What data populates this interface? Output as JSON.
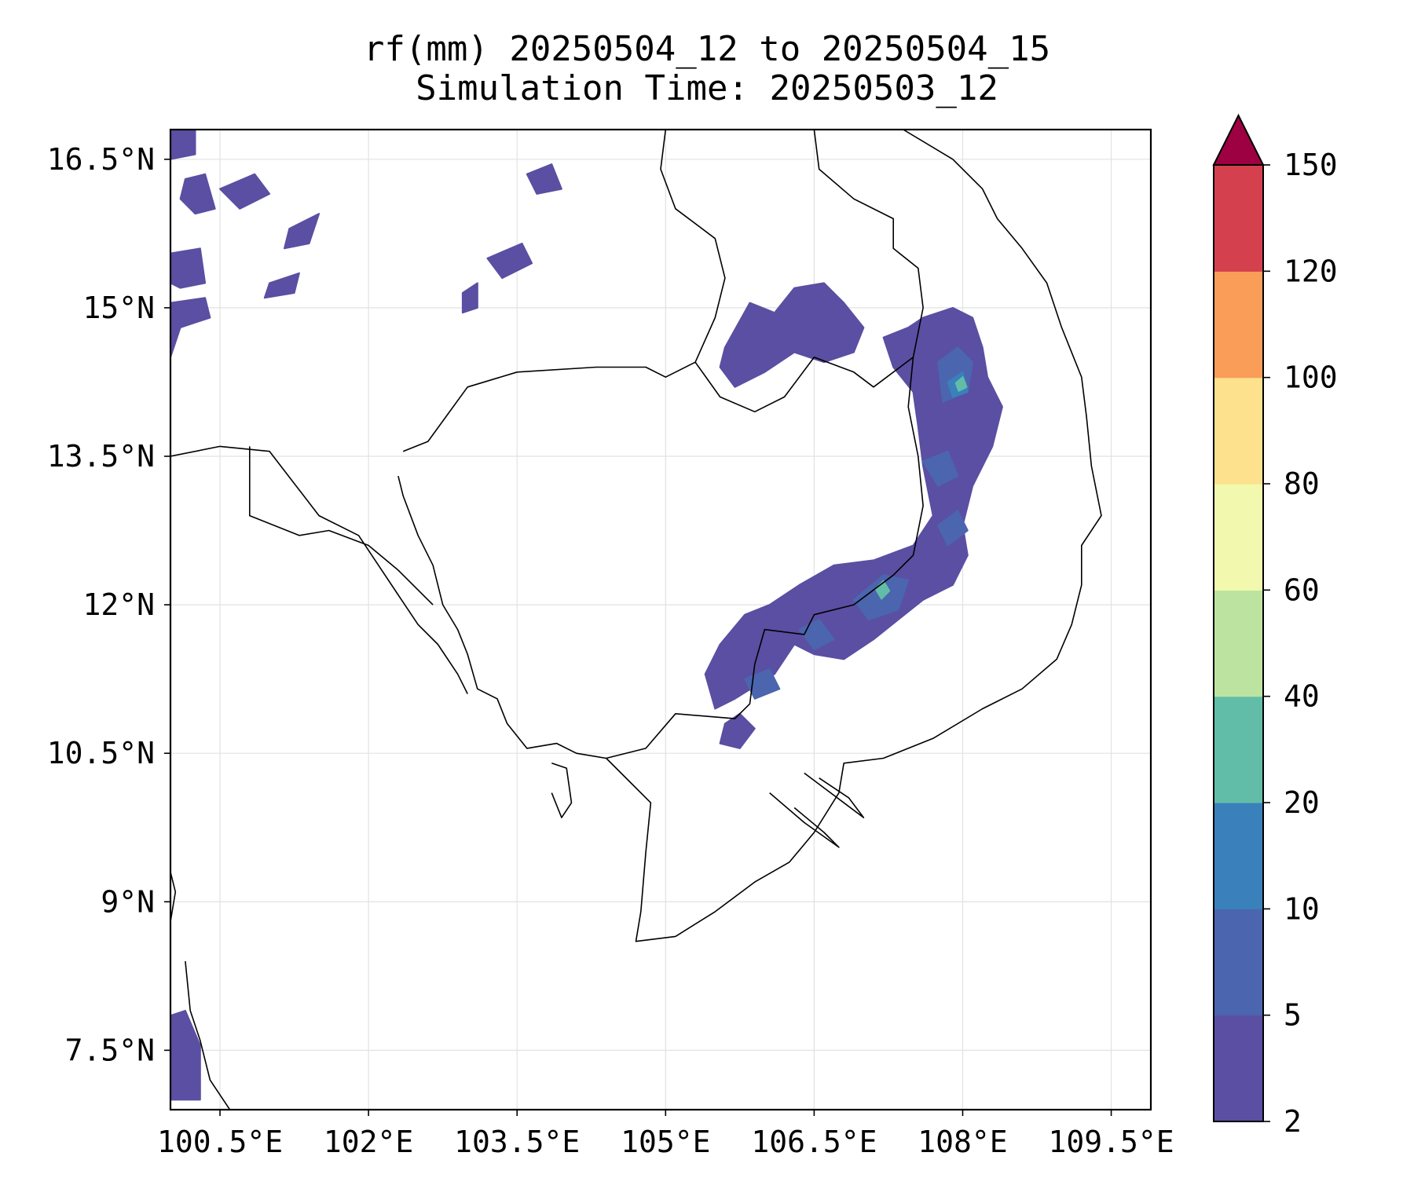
{
  "title": {
    "line1": "rf(mm) 20250504_12 to 20250504_15",
    "line2": "Simulation Time: 20250503_12"
  },
  "map": {
    "lon_range": [
      100.0,
      109.9
    ],
    "lat_range": [
      6.9,
      16.8
    ],
    "x_ticks": [
      {
        "value": 100.5,
        "label": "100.5°E"
      },
      {
        "value": 102.0,
        "label": "102°E"
      },
      {
        "value": 103.5,
        "label": "103.5°E"
      },
      {
        "value": 105.0,
        "label": "105°E"
      },
      {
        "value": 106.5,
        "label": "106.5°E"
      },
      {
        "value": 108.0,
        "label": "108°E"
      },
      {
        "value": 109.5,
        "label": "109.5°E"
      }
    ],
    "y_ticks": [
      {
        "value": 16.5,
        "label": "16.5°N"
      },
      {
        "value": 15.0,
        "label": "15°N"
      },
      {
        "value": 13.5,
        "label": "13.5°N"
      },
      {
        "value": 12.0,
        "label": "12°N"
      },
      {
        "value": 10.5,
        "label": "10.5°N"
      },
      {
        "value": 9.0,
        "label": "9°N"
      },
      {
        "value": 7.5,
        "label": "7.5°N"
      }
    ],
    "grid": true
  },
  "colorbar": {
    "levels": [
      {
        "value": 2,
        "label": "2"
      },
      {
        "value": 5,
        "label": "5"
      },
      {
        "value": 10,
        "label": "10"
      },
      {
        "value": 20,
        "label": "20"
      },
      {
        "value": 40,
        "label": "40"
      },
      {
        "value": 60,
        "label": "60"
      },
      {
        "value": 80,
        "label": "80"
      },
      {
        "value": 100,
        "label": "100"
      },
      {
        "value": 120,
        "label": "120"
      },
      {
        "value": 150,
        "label": "150"
      }
    ],
    "colors": [
      "#5a4fa2",
      "#4b65ae",
      "#3a80bb",
      "#62bda8",
      "#bce4a0",
      "#f2f9ae",
      "#fde18c",
      "#f99d59",
      "#d4404e"
    ],
    "extend_color": "#9e0142"
  },
  "rain_areas": [
    {
      "label": "northeast-band",
      "level": 0,
      "points": [
        [
          107.2,
          14.7
        ],
        [
          107.45,
          14.8
        ],
        [
          107.6,
          14.9
        ],
        [
          107.9,
          15.0
        ],
        [
          108.1,
          14.9
        ],
        [
          108.2,
          14.6
        ],
        [
          108.25,
          14.3
        ],
        [
          108.4,
          14.0
        ],
        [
          108.3,
          13.6
        ],
        [
          108.1,
          13.2
        ],
        [
          108.0,
          12.8
        ],
        [
          108.05,
          12.5
        ],
        [
          107.9,
          12.2
        ],
        [
          107.6,
          12.05
        ],
        [
          107.35,
          11.85
        ],
        [
          107.1,
          11.65
        ],
        [
          106.8,
          11.45
        ],
        [
          106.5,
          11.5
        ],
        [
          106.3,
          11.6
        ],
        [
          106.1,
          11.3
        ],
        [
          105.7,
          11.05
        ],
        [
          105.5,
          10.95
        ],
        [
          105.4,
          11.3
        ],
        [
          105.55,
          11.6
        ],
        [
          105.8,
          11.9
        ],
        [
          106.05,
          12.0
        ],
        [
          106.35,
          12.2
        ],
        [
          106.7,
          12.4
        ],
        [
          107.1,
          12.45
        ],
        [
          107.5,
          12.6
        ],
        [
          107.7,
          12.9
        ],
        [
          107.6,
          13.4
        ],
        [
          107.55,
          13.8
        ],
        [
          107.5,
          14.15
        ],
        [
          107.3,
          14.4
        ]
      ]
    },
    {
      "label": "north-cluster",
      "level": 0,
      "points": [
        [
          105.6,
          14.6
        ],
        [
          105.85,
          15.05
        ],
        [
          106.1,
          14.95
        ],
        [
          106.3,
          15.2
        ],
        [
          106.6,
          15.25
        ],
        [
          106.8,
          15.05
        ],
        [
          107.0,
          14.8
        ],
        [
          106.9,
          14.55
        ],
        [
          106.6,
          14.45
        ],
        [
          106.3,
          14.55
        ],
        [
          106.0,
          14.35
        ],
        [
          105.7,
          14.2
        ],
        [
          105.55,
          14.4
        ]
      ]
    },
    {
      "label": "south-small",
      "level": 0,
      "points": [
        [
          105.6,
          10.8
        ],
        [
          105.75,
          10.9
        ],
        [
          105.9,
          10.75
        ],
        [
          105.75,
          10.55
        ],
        [
          105.55,
          10.6
        ]
      ]
    },
    {
      "label": "northwest-speckle-1",
      "level": 0,
      "points": [
        [
          100.0,
          16.8
        ],
        [
          100.25,
          16.8
        ],
        [
          100.25,
          16.55
        ],
        [
          100.0,
          16.5
        ]
      ]
    },
    {
      "label": "northwest-speckle-2",
      "level": 0,
      "points": [
        [
          100.15,
          16.3
        ],
        [
          100.35,
          16.35
        ],
        [
          100.45,
          16.0
        ],
        [
          100.25,
          15.95
        ],
        [
          100.1,
          16.1
        ]
      ]
    },
    {
      "label": "northwest-speckle-3",
      "level": 0,
      "points": [
        [
          100.0,
          15.55
        ],
        [
          100.3,
          15.6
        ],
        [
          100.35,
          15.25
        ],
        [
          100.1,
          15.2
        ],
        [
          100.0,
          15.25
        ]
      ]
    },
    {
      "label": "northwest-speckle-4",
      "level": 0,
      "points": [
        [
          100.0,
          15.05
        ],
        [
          100.35,
          15.1
        ],
        [
          100.4,
          14.9
        ],
        [
          100.1,
          14.8
        ],
        [
          100.0,
          14.5
        ]
      ]
    },
    {
      "label": "northwest-speckle-5",
      "level": 0,
      "points": [
        [
          100.5,
          16.2
        ],
        [
          100.85,
          16.35
        ],
        [
          101.0,
          16.15
        ],
        [
          100.7,
          16.0
        ]
      ]
    },
    {
      "label": "northwest-speckle-6",
      "level": 0,
      "points": [
        [
          101.2,
          15.8
        ],
        [
          101.5,
          15.95
        ],
        [
          101.4,
          15.65
        ],
        [
          101.15,
          15.6
        ]
      ]
    },
    {
      "label": "northwest-speckle-7",
      "level": 0,
      "points": [
        [
          101.0,
          15.25
        ],
        [
          101.3,
          15.35
        ],
        [
          101.25,
          15.15
        ],
        [
          100.95,
          15.1
        ]
      ]
    },
    {
      "label": "central-speckle-1",
      "level": 0,
      "points": [
        [
          103.6,
          16.35
        ],
        [
          103.85,
          16.45
        ],
        [
          103.95,
          16.2
        ],
        [
          103.7,
          16.15
        ]
      ]
    },
    {
      "label": "central-speckle-2",
      "level": 0,
      "points": [
        [
          103.2,
          15.5
        ],
        [
          103.55,
          15.65
        ],
        [
          103.65,
          15.45
        ],
        [
          103.35,
          15.3
        ]
      ]
    },
    {
      "label": "central-speckle-3",
      "level": 0,
      "points": [
        [
          102.95,
          15.15
        ],
        [
          103.1,
          15.25
        ],
        [
          103.1,
          15.0
        ],
        [
          102.95,
          14.95
        ]
      ]
    },
    {
      "label": "far-south-west",
      "level": 0,
      "points": [
        [
          100.0,
          7.0
        ],
        [
          100.3,
          7.0
        ],
        [
          100.3,
          7.55
        ],
        [
          100.15,
          7.9
        ],
        [
          100.0,
          7.85
        ]
      ]
    },
    {
      "label": "cell-a",
      "level": 1,
      "points": [
        [
          107.75,
          14.45
        ],
        [
          107.95,
          14.6
        ],
        [
          108.1,
          14.45
        ],
        [
          108.05,
          14.15
        ],
        [
          107.8,
          14.05
        ]
      ]
    },
    {
      "label": "cell-b",
      "level": 1,
      "points": [
        [
          107.6,
          13.45
        ],
        [
          107.85,
          13.55
        ],
        [
          107.95,
          13.3
        ],
        [
          107.75,
          13.2
        ]
      ]
    },
    {
      "label": "cell-c",
      "level": 1,
      "points": [
        [
          107.75,
          12.8
        ],
        [
          107.95,
          12.95
        ],
        [
          108.05,
          12.75
        ],
        [
          107.85,
          12.6
        ]
      ]
    },
    {
      "label": "cell-d",
      "level": 1,
      "points": [
        [
          106.9,
          12.05
        ],
        [
          107.2,
          12.3
        ],
        [
          107.45,
          12.25
        ],
        [
          107.35,
          11.95
        ],
        [
          107.05,
          11.85
        ]
      ]
    },
    {
      "label": "cell-e",
      "level": 1,
      "points": [
        [
          106.35,
          11.75
        ],
        [
          106.55,
          11.85
        ],
        [
          106.7,
          11.65
        ],
        [
          106.5,
          11.55
        ]
      ]
    },
    {
      "label": "cell-f",
      "level": 1,
      "points": [
        [
          105.8,
          11.25
        ],
        [
          106.05,
          11.35
        ],
        [
          106.15,
          11.15
        ],
        [
          105.9,
          11.05
        ]
      ]
    },
    {
      "label": "cell-g",
      "level": 2,
      "points": [
        [
          107.85,
          14.25
        ],
        [
          108.0,
          14.35
        ],
        [
          108.05,
          14.15
        ],
        [
          107.9,
          14.1
        ]
      ]
    },
    {
      "label": "cell-h",
      "level": 3,
      "points": [
        [
          107.93,
          14.24
        ],
        [
          108.0,
          14.3
        ],
        [
          108.04,
          14.2
        ],
        [
          107.96,
          14.16
        ]
      ]
    },
    {
      "label": "cell-i",
      "level": 3,
      "points": [
        [
          107.12,
          12.16
        ],
        [
          107.2,
          12.24
        ],
        [
          107.26,
          12.14
        ],
        [
          107.18,
          12.06
        ]
      ]
    }
  ],
  "boundaries": [
    {
      "label": "cambodia-border",
      "points": [
        [
          102.35,
          13.55
        ],
        [
          102.6,
          13.65
        ],
        [
          103.0,
          14.2
        ],
        [
          103.5,
          14.35
        ],
        [
          104.3,
          14.4
        ],
        [
          104.8,
          14.4
        ],
        [
          105.0,
          14.3
        ],
        [
          105.3,
          14.45
        ],
        [
          105.55,
          14.1
        ],
        [
          105.9,
          13.95
        ],
        [
          106.2,
          14.1
        ],
        [
          106.5,
          14.5
        ],
        [
          106.9,
          14.35
        ],
        [
          107.1,
          14.2
        ],
        [
          107.5,
          14.5
        ],
        [
          107.45,
          14.0
        ],
        [
          107.55,
          13.5
        ],
        [
          107.6,
          13.0
        ],
        [
          107.5,
          12.5
        ],
        [
          107.3,
          12.3
        ],
        [
          106.9,
          12.0
        ],
        [
          106.5,
          11.9
        ],
        [
          106.4,
          11.7
        ],
        [
          106.0,
          11.75
        ],
        [
          105.9,
          11.4
        ],
        [
          105.85,
          11.0
        ],
        [
          105.7,
          10.85
        ],
        [
          105.1,
          10.9
        ],
        [
          104.8,
          10.55
        ],
        [
          104.4,
          10.45
        ],
        [
          104.1,
          10.5
        ],
        [
          103.9,
          10.6
        ],
        [
          103.6,
          10.55
        ],
        [
          103.4,
          10.8
        ],
        [
          103.3,
          11.05
        ],
        [
          103.1,
          11.15
        ],
        [
          103.0,
          11.5
        ],
        [
          102.9,
          11.75
        ],
        [
          102.75,
          12.0
        ],
        [
          102.65,
          12.4
        ],
        [
          102.5,
          12.7
        ],
        [
          102.35,
          13.1
        ],
        [
          102.3,
          13.3
        ]
      ]
    },
    {
      "label": "thailand-laos-border",
      "points": [
        [
          105.0,
          16.8
        ],
        [
          104.95,
          16.4
        ],
        [
          105.1,
          16.0
        ],
        [
          105.5,
          15.7
        ],
        [
          105.6,
          15.3
        ],
        [
          105.5,
          14.9
        ],
        [
          105.3,
          14.45
        ]
      ]
    },
    {
      "label": "laos-vietnam-border",
      "points": [
        [
          106.5,
          16.8
        ],
        [
          106.55,
          16.4
        ],
        [
          106.9,
          16.1
        ],
        [
          107.3,
          15.9
        ],
        [
          107.3,
          15.6
        ],
        [
          107.55,
          15.4
        ],
        [
          107.6,
          15.0
        ],
        [
          107.5,
          14.5
        ]
      ]
    },
    {
      "label": "vietnam-coast",
      "points": [
        [
          107.4,
          16.8
        ],
        [
          107.9,
          16.5
        ],
        [
          108.2,
          16.2
        ],
        [
          108.35,
          15.9
        ],
        [
          108.6,
          15.6
        ],
        [
          108.85,
          15.25
        ],
        [
          109.0,
          14.8
        ],
        [
          109.2,
          14.3
        ],
        [
          109.25,
          13.9
        ],
        [
          109.3,
          13.4
        ],
        [
          109.4,
          12.9
        ],
        [
          109.2,
          12.6
        ],
        [
          109.2,
          12.2
        ],
        [
          109.1,
          11.8
        ],
        [
          108.95,
          11.45
        ],
        [
          108.6,
          11.15
        ],
        [
          108.2,
          10.95
        ],
        [
          107.7,
          10.65
        ],
        [
          107.2,
          10.45
        ],
        [
          106.8,
          10.4
        ],
        [
          106.75,
          10.1
        ],
        [
          106.5,
          9.7
        ],
        [
          106.25,
          9.4
        ],
        [
          105.9,
          9.2
        ],
        [
          105.5,
          8.9
        ],
        [
          105.1,
          8.65
        ],
        [
          104.7,
          8.6
        ],
        [
          104.75,
          8.9
        ],
        [
          104.8,
          9.5
        ],
        [
          104.85,
          10.0
        ],
        [
          104.65,
          10.2
        ],
        [
          104.4,
          10.45
        ]
      ]
    },
    {
      "label": "thailand-gulf-coast",
      "points": [
        [
          100.0,
          13.5
        ],
        [
          100.5,
          13.6
        ],
        [
          101.0,
          13.55
        ],
        [
          101.5,
          12.9
        ],
        [
          101.9,
          12.7
        ],
        [
          102.1,
          12.4
        ],
        [
          102.3,
          12.1
        ],
        [
          102.5,
          11.8
        ],
        [
          102.7,
          11.6
        ],
        [
          102.9,
          11.3
        ],
        [
          103.0,
          11.1
        ]
      ]
    },
    {
      "label": "thailand-inner-border",
      "points": [
        [
          100.8,
          13.6
        ],
        [
          100.8,
          12.9
        ],
        [
          101.3,
          12.7
        ],
        [
          101.6,
          12.75
        ],
        [
          102.0,
          12.6
        ],
        [
          102.3,
          12.35
        ],
        [
          102.65,
          12.0
        ]
      ]
    },
    {
      "label": "peninsula-coast-east",
      "points": [
        [
          100.15,
          8.4
        ],
        [
          100.2,
          7.9
        ],
        [
          100.3,
          7.6
        ],
        [
          100.4,
          7.2
        ],
        [
          100.6,
          6.9
        ]
      ]
    },
    {
      "label": "peninsula-coast-west",
      "points": [
        [
          100.0,
          9.3
        ],
        [
          100.05,
          9.1
        ],
        [
          100.0,
          8.8
        ]
      ]
    },
    {
      "label": "island-phu-quoc",
      "points": [
        [
          103.85,
          10.4
        ],
        [
          104.0,
          10.35
        ],
        [
          104.05,
          10.0
        ],
        [
          103.95,
          9.85
        ],
        [
          103.85,
          10.1
        ]
      ]
    },
    {
      "label": "mekong-delta-river-1",
      "points": [
        [
          106.05,
          10.1
        ],
        [
          106.4,
          9.8
        ],
        [
          106.75,
          9.55
        ],
        [
          106.6,
          9.7
        ],
        [
          106.3,
          9.95
        ]
      ]
    },
    {
      "label": "mekong-delta-river-2",
      "points": [
        [
          106.4,
          10.3
        ],
        [
          106.8,
          10.0
        ],
        [
          107.0,
          9.85
        ],
        [
          106.85,
          10.05
        ],
        [
          106.55,
          10.25
        ]
      ]
    }
  ]
}
